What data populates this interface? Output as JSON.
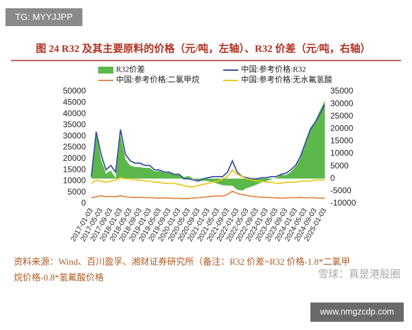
{
  "badge": "TG: MYYJJPP",
  "source": {
    "lines": [
      "资料来源：Wind、百川盈孚、湘财证券研究所（备注：R32 价差=R32 价格-1.8*二氯甲",
      "烷价格-0.8*氢氟酸价格"
    ]
  },
  "watermark": "雪球：真是港股圈",
  "site": "www.nmgzcdp.com",
  "chart_data": {
    "type": "line",
    "title": "图 24 R32 及其主要原料的价格（元/吨，左轴）、R32 价差（元/吨，右轴）",
    "categories": [
      "2017-01-03",
      null,
      "2017-05-03",
      null,
      "2017-09-03",
      null,
      "2018-01-03",
      null,
      "2018-05-03",
      null,
      "2018-09-03",
      null,
      "2019-01-03",
      null,
      "2019-05-03",
      null,
      "2019-09-03",
      null,
      "2020-01-03",
      null,
      "2020-05-03",
      null,
      "2020-09-03",
      null,
      "2021-01-03",
      null,
      "2021-05-03",
      null,
      "2021-09-03",
      null,
      "2022-01-03",
      null,
      "2022-05-03",
      null,
      "2022-09-03",
      null,
      "2023-01-03",
      null,
      "2023-05-03",
      null,
      "2023-09-03",
      null,
      "2024-01-03",
      null,
      "2024-05-03",
      null,
      "2024-09-03",
      null,
      "2025-01-03"
    ],
    "series": [
      {
        "name": "R32价差",
        "type": "area",
        "axis": "y2",
        "color": "#5cb84a",
        "values": [
          300,
          18200,
          7700,
          2000,
          3200,
          200,
          17500,
          7800,
          5200,
          4700,
          4600,
          4300,
          4300,
          2900,
          3100,
          2300,
          2500,
          1700,
          2100,
          600,
          1000,
          0,
          -1100,
          -800,
          -1100,
          -1400,
          -2100,
          -2700,
          -2800,
          -2900,
          -4500,
          -4800,
          -3800,
          -3200,
          -2400,
          -1500,
          -1000,
          -300,
          300,
          1500,
          1400,
          2700,
          4700,
          8100,
          14500,
          20300,
          23100,
          27300,
          31300
        ]
      },
      {
        "name": "中国:参考价格:R32",
        "type": "line",
        "color": "#3a50a0",
        "values": [
          12000,
          32000,
          22000,
          15000,
          17000,
          14000,
          33000,
          22000,
          19000,
          18000,
          18000,
          17000,
          17000,
          15000,
          15000,
          14000,
          14000,
          13000,
          13000,
          11000,
          11000,
          10500,
          10000,
          11000,
          11500,
          12000,
          12000,
          12000,
          14000,
          19000,
          14000,
          12000,
          11500,
          11000,
          11000,
          11500,
          11500,
          12000,
          12000,
          13000,
          13500,
          15000,
          17000,
          21000,
          27000,
          33000,
          36000,
          40000,
          44000
        ]
      },
      {
        "name": "中国:参考价格:二氯甲烷",
        "type": "line",
        "color": "#e08a4a",
        "values": [
          2500,
          3000,
          3500,
          3000,
          3200,
          3000,
          3500,
          3000,
          2800,
          2700,
          2800,
          2600,
          2600,
          2500,
          2400,
          2500,
          2400,
          2300,
          2300,
          2200,
          2200,
          2500,
          2600,
          2800,
          3000,
          3200,
          3400,
          3300,
          4000,
          5500,
          4500,
          4000,
          3600,
          3200,
          3000,
          2800,
          2700,
          2600,
          2500,
          2400,
          2500,
          2600,
          2600,
          2700,
          2500,
          2600,
          2500,
          2400,
          2400
        ]
      },
      {
        "name": "中国:参考价格:无水氟氢酸",
        "type": "line",
        "color": "#e8c820",
        "values": [
          9000,
          10500,
          10000,
          9500,
          10000,
          10500,
          11500,
          11000,
          11000,
          10500,
          10500,
          10000,
          10000,
          9500,
          9500,
          9000,
          9000,
          9000,
          8500,
          8000,
          7500,
          7500,
          8000,
          8500,
          9000,
          9500,
          10000,
          11000,
          12000,
          15000,
          13000,
          12000,
          11000,
          10500,
          10000,
          10000,
          9500,
          9500,
          9000,
          9000,
          9500,
          9500,
          9500,
          10000,
          10000,
          10000,
          10500,
          10500,
          10500
        ]
      }
    ],
    "ylim": [
      0,
      50000
    ],
    "yticks": [
      0,
      5000,
      10000,
      15000,
      20000,
      25000,
      30000,
      35000,
      40000,
      45000,
      50000
    ],
    "y2lim": [
      -10000,
      35000
    ],
    "y2ticks": [
      -10000,
      -5000,
      0,
      5000,
      10000,
      15000,
      20000,
      25000,
      30000,
      35000
    ],
    "grid": false
  }
}
